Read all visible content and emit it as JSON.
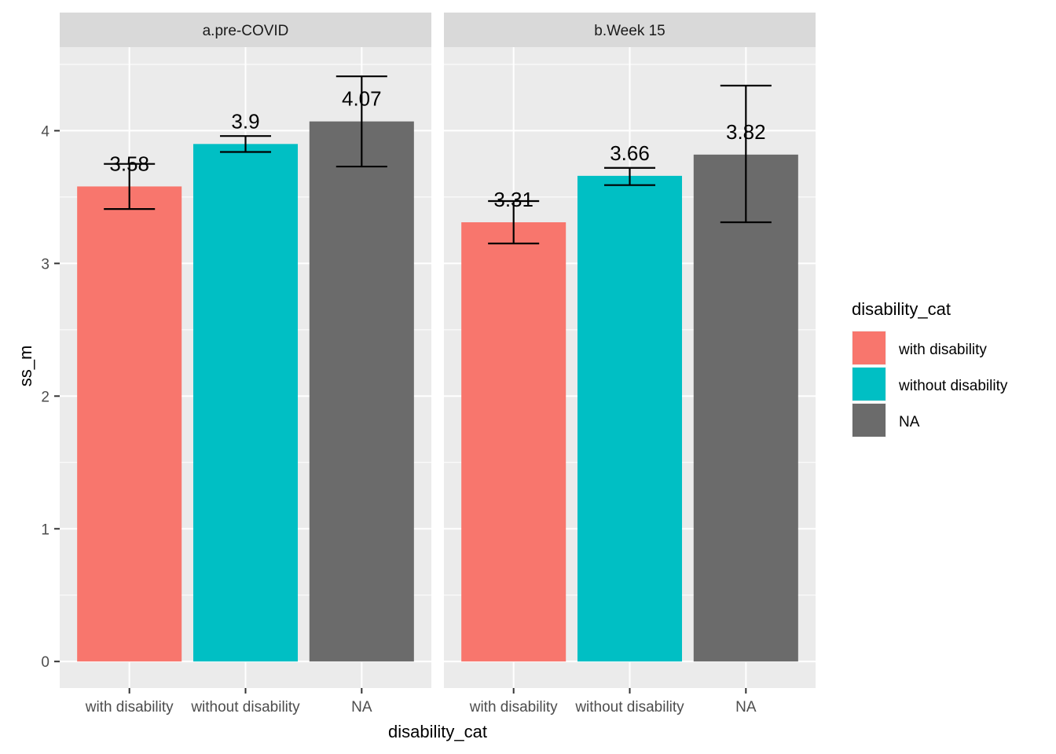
{
  "chart_data": {
    "type": "bar",
    "xlabel": "disability_cat",
    "ylabel": "ss_m",
    "ylim": [
      -0.2,
      4.63
    ],
    "yticks": [
      0,
      1,
      2,
      3,
      4
    ],
    "grid": true,
    "legend": {
      "title": "disability_cat",
      "placement": "right",
      "entries": [
        {
          "label": "with disability",
          "color": "#F8766D"
        },
        {
          "label": "without disability",
          "color": "#00BFC4"
        },
        {
          "label": "NA",
          "color": "#6B6B6B"
        }
      ]
    },
    "categories": [
      "with disability",
      "without disability",
      "NA"
    ],
    "colors": [
      "#F8766D",
      "#00BFC4",
      "#6B6B6B"
    ],
    "panels": [
      {
        "title": "a.pre-COVID",
        "values": [
          3.58,
          3.9,
          4.07
        ],
        "labels": [
          "3.58",
          "3.9",
          "4.07"
        ],
        "error_low": [
          3.41,
          3.84,
          3.73
        ],
        "error_high": [
          3.75,
          3.96,
          4.41
        ]
      },
      {
        "title": "b.Week 15",
        "values": [
          3.31,
          3.66,
          3.82
        ],
        "labels": [
          "3.31",
          "3.66",
          "3.82"
        ],
        "error_low": [
          3.15,
          3.59,
          3.31
        ],
        "error_high": [
          3.47,
          3.72,
          4.34
        ]
      }
    ]
  }
}
